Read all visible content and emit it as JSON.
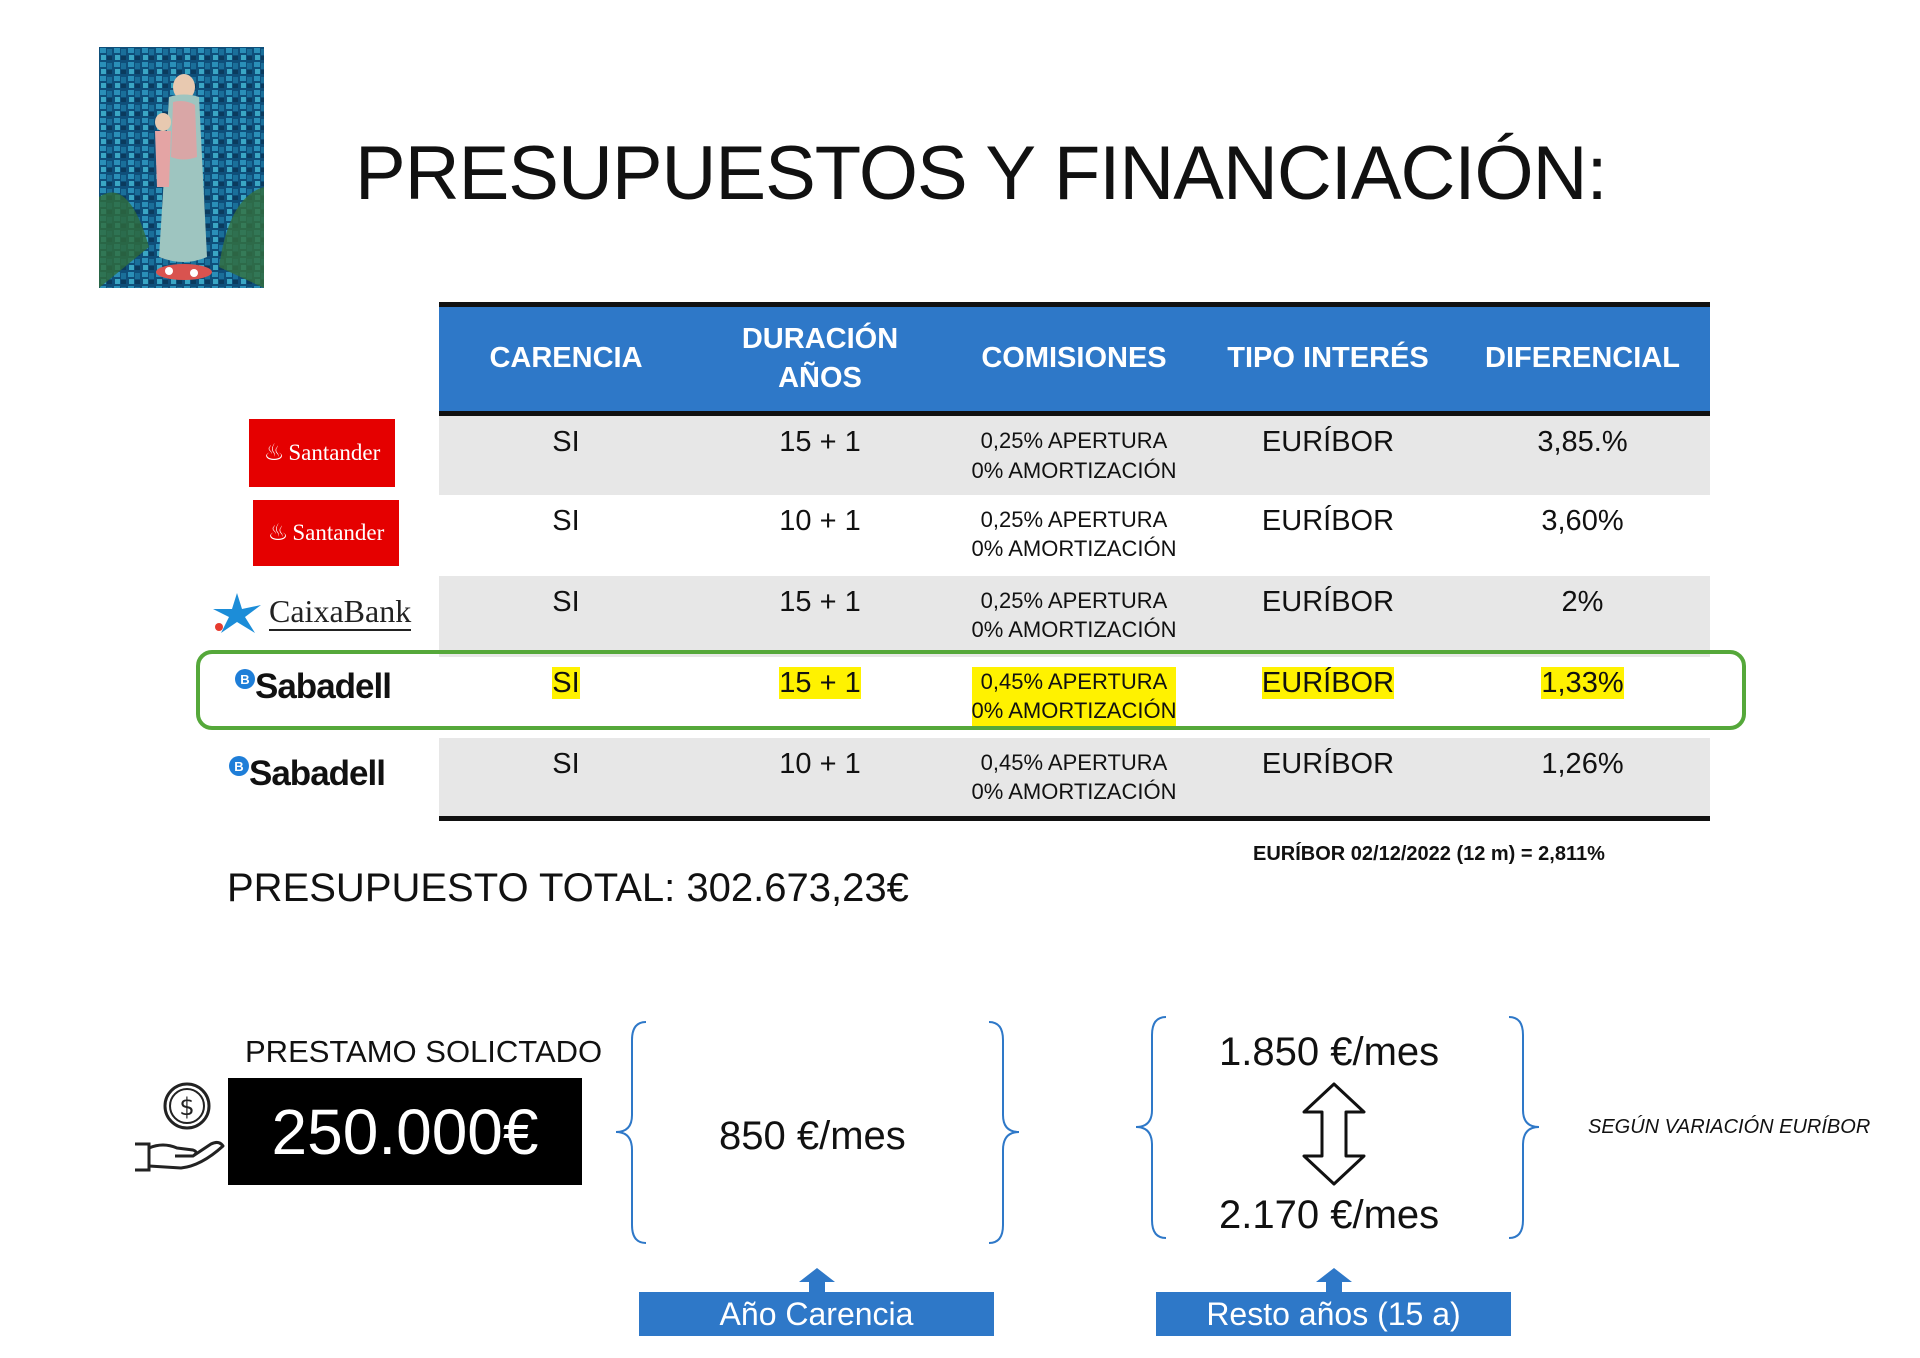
{
  "title": "PRESUPUESTOS Y FINANCIACIÓN:",
  "table": {
    "headers": [
      {
        "line1": "CARENCIA",
        "line2": ""
      },
      {
        "line1": "DURACIÓN",
        "line2": "AÑOS"
      },
      {
        "line1": "COMISIONES",
        "line2": ""
      },
      {
        "line1": "TIPO INTERÉS",
        "line2": ""
      },
      {
        "line1": "DIFERENCIAL",
        "line2": ""
      }
    ],
    "rows": [
      {
        "bank": "Santander",
        "carencia": "SI",
        "duracion": "15 + 1",
        "comision_1": "0,25% APERTURA",
        "comision_2": "0% AMORTIZACIÓN",
        "interes": "EURÍBOR",
        "diferencial": "3,85.%"
      },
      {
        "bank": "Santander",
        "carencia": "SI",
        "duracion": "10 + 1",
        "comision_1": "0,25% APERTURA",
        "comision_2": "0% AMORTIZACIÓN",
        "interes": "EURÍBOR",
        "diferencial": "3,60%"
      },
      {
        "bank": "CaixaBank",
        "carencia": "SI",
        "duracion": "15 + 1",
        "comision_1": "0,25% APERTURA",
        "comision_2": "0% AMORTIZACIÓN",
        "interes": "EURÍBOR",
        "diferencial": "2%"
      },
      {
        "bank": "Sabadell",
        "carencia": "SI",
        "duracion": "15 + 1",
        "comision_1": "0,45% APERTURA",
        "comision_2": "0% AMORTIZACIÓN",
        "interes": "EURÍBOR",
        "diferencial": "1,33%"
      },
      {
        "bank": "Sabadell",
        "carencia": "SI",
        "duracion": "10 + 1",
        "comision_1": "0,45% APERTURA",
        "comision_2": "0% AMORTIZACIÓN",
        "interes": "EURÍBOR",
        "diferencial": "1,26%"
      }
    ]
  },
  "euribor_note": "EURÍBOR 02/12/2022  (12 m) =  2,811%",
  "total": "PRESUPUESTO TOTAL: 302.673,23€",
  "loan": {
    "label": "PRESTAMO SOLICTADO",
    "amount": "250.000€",
    "icon": "money-hand-icon"
  },
  "payments": {
    "carencia_amount": "850 €/mes",
    "resto_high": "1.850 €/mes",
    "resto_low": "2.170 €/mes",
    "variation_note": "SEGÚN VARIACIÓN EURÍBOR"
  },
  "labels": {
    "carencia": "Año Carencia",
    "resto": "Resto años (15 a)"
  },
  "colors": {
    "header_blue": "#2e78c8",
    "highlight": "#fff200",
    "frame_green": "#55a83a",
    "santander_red": "#e50000",
    "sabadell_blue": "#1e7ed8"
  }
}
